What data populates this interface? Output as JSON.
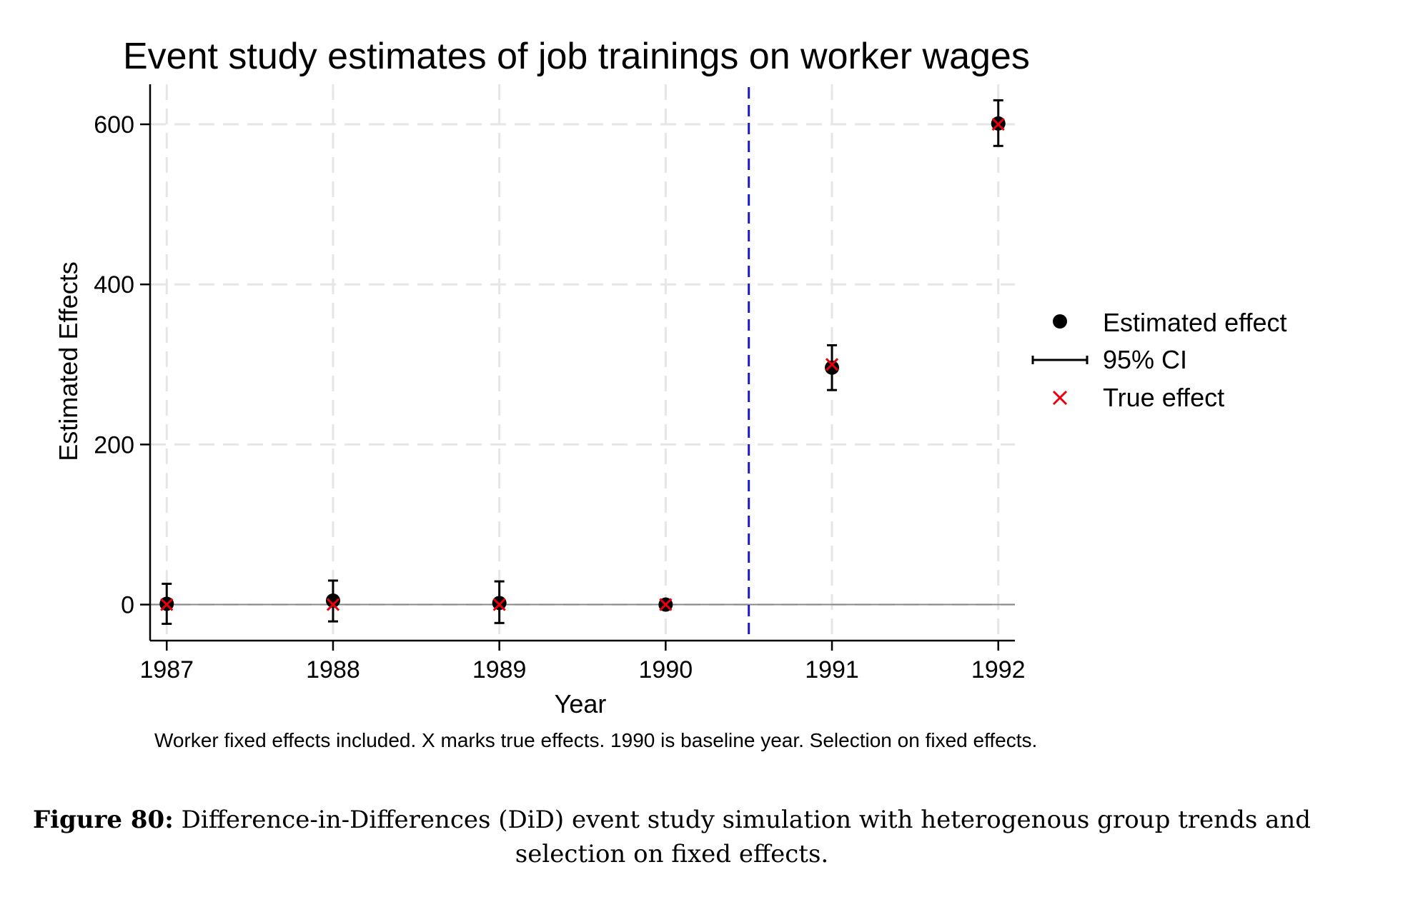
{
  "chart_data": {
    "type": "scatter",
    "title": "Event study estimates of job trainings on worker wages",
    "xlabel": "Year",
    "ylabel": "Estimated Effects",
    "note": "Worker fixed effects included. X marks true effects. 1990 is baseline year. Selection on fixed effects.",
    "x_ticks": [
      "1987",
      "1988",
      "1989",
      "1990",
      "1991",
      "1992"
    ],
    "y_ticks": [
      "0",
      "200",
      "400",
      "600"
    ],
    "xlim": [
      1986.9,
      1992.1
    ],
    "ylim": [
      -45,
      650
    ],
    "grid": true,
    "reference_line": {
      "axis": "x",
      "value": 1990.5,
      "style": "dashed",
      "color": "#1a1acc"
    },
    "zero_line": {
      "axis": "y",
      "value": 0,
      "color": "#888888"
    },
    "legend_position": "right",
    "legend": [
      {
        "label": "Estimated effect",
        "marker": "dot"
      },
      {
        "label": "95% CI",
        "marker": "capped-line"
      },
      {
        "label": "True effect",
        "marker": "cross"
      }
    ],
    "series": [
      {
        "name": "Estimated effect",
        "x": [
          1987,
          1988,
          1989,
          1990,
          1991,
          1992
        ],
        "y": [
          1,
          5,
          2,
          0,
          296,
          601
        ],
        "ci_low": [
          -24,
          -21,
          -23,
          0,
          268,
          573
        ],
        "ci_high": [
          26,
          30,
          29,
          0,
          324,
          630
        ],
        "color": "#000000"
      },
      {
        "name": "True effect",
        "x": [
          1987,
          1988,
          1989,
          1990,
          1991,
          1992
        ],
        "y": [
          0,
          0,
          0,
          0,
          300,
          600
        ],
        "color": "#e8000b"
      }
    ]
  },
  "figure_caption": {
    "label": "Figure 80:",
    "text": "Difference-in-Differences (DiD) event study simulation with heterogenous group trends and selection on fixed effects."
  }
}
